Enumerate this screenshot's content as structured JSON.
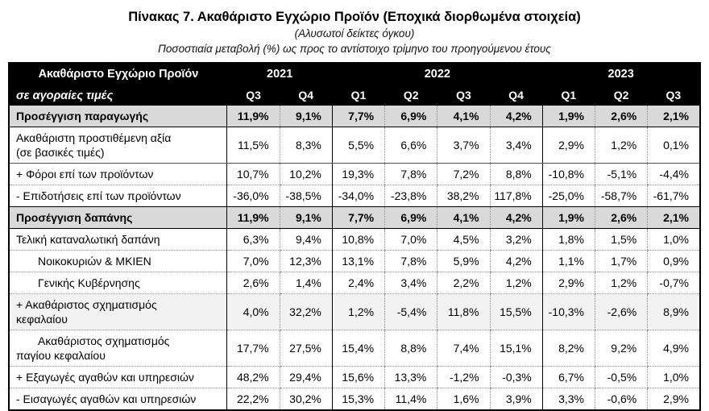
{
  "title": "Πίνακας 7. Ακαθάριστο Εγχώριο Προϊόν (Εποχικά διορθωμένα στοιχεία)",
  "subtitle1": "(Αλυσωτοί δείκτες όγκου)",
  "subtitle2": "Ποσοστιαία μεταβολή (%) ως προς το αντίστοιχο τρίμηνο του προηγούμενου έτους",
  "colors": {
    "header_bg": "#000000",
    "header_text": "#ffffff",
    "section_row_bg": "#d9d9d9",
    "light_row_bg": "#f2f2f2",
    "grid_dotted": "#8f8f8f",
    "grid_solid": "#000000"
  },
  "table": {
    "corner": {
      "line1": "Ακαθάριστο Εγχώριο Προϊόν",
      "line2": "σε αγοραίες τιμές"
    },
    "year_groups": [
      {
        "label": "2021",
        "span": 2
      },
      {
        "label": "2022",
        "span": 4
      },
      {
        "label": "2023",
        "span": 3
      }
    ],
    "quarters": [
      "Q3",
      "Q4",
      "Q1",
      "Q2",
      "Q3",
      "Q4",
      "Q1",
      "Q2",
      "Q3"
    ],
    "year_start_columns": [
      0,
      2,
      6
    ],
    "rows": [
      {
        "label": "Προσέγγιση παραγωγής",
        "style": "section",
        "indent": false,
        "border_bottom": "solid",
        "values": [
          "11,9%",
          "9,1%",
          "7,7%",
          "6,9%",
          "4,1%",
          "4,2%",
          "1,9%",
          "2,6%",
          "2,1%"
        ]
      },
      {
        "label": "Ακαθάριστη προστιθέμενη αξία\n(σε βασικές τιμές)",
        "style": "normal",
        "indent": false,
        "border_bottom": "thin",
        "values": [
          "11,5%",
          "8,3%",
          "5,5%",
          "6,6%",
          "3,7%",
          "3,4%",
          "2,9%",
          "1,2%",
          "0,1%"
        ]
      },
      {
        "label": "+ Φόροι επί των προϊόντων",
        "style": "normal",
        "indent": false,
        "border_bottom": "dotted",
        "values": [
          "10,7%",
          "10,2%",
          "19,3%",
          "7,8%",
          "7,2%",
          "8,8%",
          "-10,8%",
          "-5,1%",
          "-4,4%"
        ]
      },
      {
        "label": "- Επιδοτήσεις επί των προϊόντων",
        "style": "normal",
        "indent": false,
        "border_bottom": "solid",
        "values": [
          "-36,0%",
          "-38,5%",
          "-34,0%",
          "-23,8%",
          "38,2%",
          "117,8%",
          "-25,0%",
          "-58,7%",
          "-61,7%"
        ]
      },
      {
        "label": "Προσέγγιση δαπάνης",
        "style": "section",
        "indent": false,
        "border_bottom": "solid",
        "values": [
          "11,9%",
          "9,1%",
          "7,7%",
          "6,9%",
          "4,1%",
          "4,2%",
          "1,9%",
          "2,6%",
          "2,1%"
        ]
      },
      {
        "label": "Τελική καταναλωτική δαπάνη",
        "style": "normal",
        "indent": false,
        "border_bottom": "dotted",
        "values": [
          "6,3%",
          "9,4%",
          "10,8%",
          "7,0%",
          "4,5%",
          "3,2%",
          "1,8%",
          "1,5%",
          "1,0%"
        ]
      },
      {
        "label": "Νοικοκυριών & ΜΚΙΕΝ",
        "style": "normal",
        "indent": true,
        "border_bottom": "dotted",
        "values": [
          "7,0%",
          "12,3%",
          "13,1%",
          "7,8%",
          "5,9%",
          "4,2%",
          "1,1%",
          "1,7%",
          "0,9%"
        ]
      },
      {
        "label": "Γενικής Κυβέρνησης",
        "style": "normal",
        "indent": true,
        "border_bottom": "dotted",
        "values": [
          "2,6%",
          "1,4%",
          "2,4%",
          "3,4%",
          "2,2%",
          "1,2%",
          "2,9%",
          "1,2%",
          "-0,7%"
        ]
      },
      {
        "label": "+ Ακαθάριστος σχηματισμός\nκεφαλαίου",
        "style": "light",
        "indent": false,
        "border_bottom": "dotted",
        "values": [
          "4,0%",
          "32,2%",
          "1,2%",
          "-5,4%",
          "11,8%",
          "15,5%",
          "-10,3%",
          "-2,6%",
          "8,9%"
        ]
      },
      {
        "label": "Ακαθάριστος σχηματισμός\nπαγίου κεφαλαίου",
        "style": "normal",
        "indent": true,
        "border_bottom": "dotted",
        "values": [
          "17,7%",
          "27,5%",
          "15,4%",
          "8,8%",
          "7,4%",
          "15,1%",
          "8,2%",
          "9,2%",
          "4,9%"
        ]
      },
      {
        "label": "+ Εξαγωγές αγαθών και υπηρεσιών",
        "style": "normal",
        "indent": false,
        "border_bottom": "dotted",
        "values": [
          "48,2%",
          "29,4%",
          "15,6%",
          "13,3%",
          "-1,2%",
          "-0,3%",
          "6,7%",
          "-0,5%",
          "1,0%"
        ]
      },
      {
        "label": "- Εισαγωγές αγαθών και υπηρεσιών",
        "style": "normal",
        "indent": false,
        "border_bottom": "none",
        "values": [
          "22,2%",
          "30,2%",
          "15,3%",
          "11,4%",
          "1,6%",
          "3,9%",
          "3,3%",
          "-0,6%",
          "2,9%"
        ]
      }
    ]
  }
}
